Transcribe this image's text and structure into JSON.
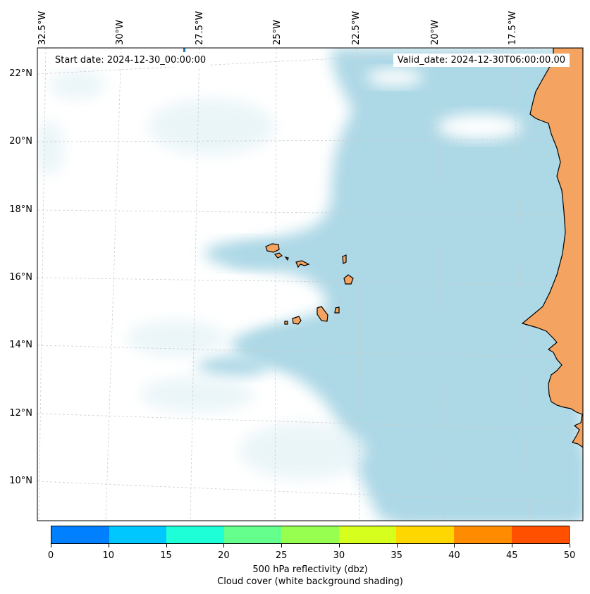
{
  "header": {
    "start_date": "Start date: 2024-12-30_00:00:00",
    "valid_date": "Valid_date: 2024-12-30T06:00:00.00"
  },
  "axes": {
    "longitude_labels": [
      "32.5°W",
      "30°W",
      "27.5°W",
      "25°W",
      "22.5°W",
      "20°W",
      "17.5°W"
    ],
    "latitude_labels": [
      "22°N",
      "20°N",
      "18°N",
      "16°N",
      "14°N",
      "12°N",
      "10°N"
    ]
  },
  "colorbar": {
    "colors": [
      "#0080ff",
      "#00c8ff",
      "#1effd7",
      "#64ff8c",
      "#96ff50",
      "#d7ff1e",
      "#ffd700",
      "#ff8c00",
      "#ff5000"
    ],
    "tick_labels": [
      "0",
      "10",
      "15",
      "20",
      "25",
      "30",
      "35",
      "40",
      "45",
      "50"
    ],
    "label": "500 hPa reflectivity (dbz)",
    "sublabel": "Cloud cover (white background shading)"
  },
  "colors": {
    "ocean_cloud": "#add8e6",
    "land": "#f4a460",
    "coastline": "#000000",
    "gridline": "#cccccc"
  }
}
